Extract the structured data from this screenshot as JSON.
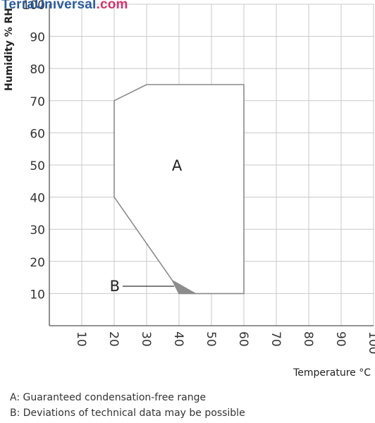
{
  "watermark": {
    "main": "TerraUniversal",
    "tld": ".com"
  },
  "chart_data": {
    "type": "area",
    "title": "",
    "xlabel": "Temperature °C",
    "ylabel": "Humidity % RH",
    "xlim": [
      0,
      100
    ],
    "ylim": [
      0,
      100
    ],
    "x_ticks": [
      "10",
      "20",
      "30",
      "40",
      "50",
      "60",
      "70",
      "80",
      "90",
      "100"
    ],
    "x_tick_values": [
      10,
      20,
      30,
      40,
      50,
      60,
      70,
      80,
      90,
      100
    ],
    "y_ticks": [
      "10",
      "20",
      "30",
      "40",
      "50",
      "60",
      "70",
      "80",
      "90",
      "100"
    ],
    "y_tick_values": [
      10,
      20,
      30,
      40,
      50,
      60,
      70,
      80,
      90,
      100
    ],
    "grid": true,
    "regions": [
      {
        "label": "A",
        "label_at": {
          "x": 40,
          "y": 50
        },
        "polygon": [
          [
            20,
            40
          ],
          [
            20,
            70
          ],
          [
            30,
            75
          ],
          [
            60,
            75
          ],
          [
            60,
            10
          ],
          [
            45,
            10
          ],
          [
            38,
            14
          ],
          [
            20,
            40
          ]
        ],
        "fill": "#ffffff",
        "stroke": "#8a8a8a"
      },
      {
        "label": "B",
        "label_at": {
          "x": 0,
          "y": 12.5
        },
        "leader_to": {
          "x": 38.5,
          "y": 12.5
        },
        "polygon": [
          [
            38,
            14
          ],
          [
            45,
            10
          ],
          [
            40,
            10
          ]
        ],
        "fill": "#8c8c8c",
        "stroke": "#8c8c8c"
      }
    ],
    "legend": [
      "A: Guaranteed condensation-free range",
      "B: Deviations of technical data may be possible"
    ],
    "colors": {
      "grid": "#c8c8c8",
      "axis": "#555555",
      "outline": "#8a8a8a",
      "deviation": "#8c8c8c"
    }
  }
}
